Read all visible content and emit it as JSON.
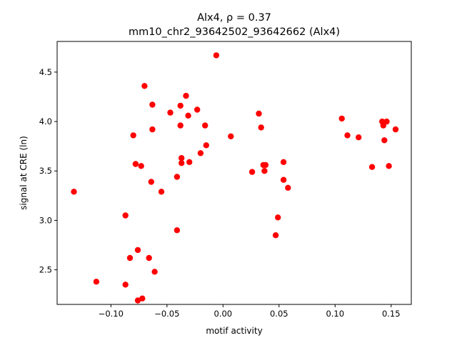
{
  "chart_data": {
    "type": "scatter",
    "title_line1": "Alx4, ρ = 0.37",
    "title_line2": "mm10_chr2_93642502_93642662 (Alx4)",
    "xlabel": "motif activity",
    "ylabel": "signal at CRE (ln)",
    "xlim": [
      -0.148,
      0.168
    ],
    "ylim": [
      2.15,
      4.81
    ],
    "x_ticks": [
      -0.1,
      -0.05,
      0.0,
      0.05,
      0.1,
      0.15
    ],
    "x_tick_labels": [
      "−0.10",
      "−0.05",
      "0.00",
      "0.05",
      "0.10",
      "0.15"
    ],
    "y_ticks": [
      2.5,
      3.0,
      3.5,
      4.0,
      4.5
    ],
    "y_tick_labels": [
      "2.5",
      "3.0",
      "3.5",
      "4.0",
      "4.5"
    ],
    "grid": false,
    "marker_color": "#ff0000",
    "points": [
      {
        "x": -0.133,
        "y": 3.29
      },
      {
        "x": -0.113,
        "y": 2.38
      },
      {
        "x": -0.087,
        "y": 3.05
      },
      {
        "x": -0.087,
        "y": 2.35
      },
      {
        "x": -0.083,
        "y": 2.62
      },
      {
        "x": -0.08,
        "y": 3.86
      },
      {
        "x": -0.078,
        "y": 3.57
      },
      {
        "x": -0.076,
        "y": 2.7
      },
      {
        "x": -0.076,
        "y": 2.19
      },
      {
        "x": -0.073,
        "y": 3.55
      },
      {
        "x": -0.072,
        "y": 2.21
      },
      {
        "x": -0.07,
        "y": 4.36
      },
      {
        "x": -0.066,
        "y": 2.62
      },
      {
        "x": -0.064,
        "y": 3.39
      },
      {
        "x": -0.063,
        "y": 4.17
      },
      {
        "x": -0.063,
        "y": 3.92
      },
      {
        "x": -0.061,
        "y": 2.48
      },
      {
        "x": -0.055,
        "y": 3.29
      },
      {
        "x": -0.047,
        "y": 4.09
      },
      {
        "x": -0.041,
        "y": 3.44
      },
      {
        "x": -0.041,
        "y": 2.9
      },
      {
        "x": -0.038,
        "y": 4.16
      },
      {
        "x": -0.038,
        "y": 3.96
      },
      {
        "x": -0.037,
        "y": 3.63
      },
      {
        "x": -0.037,
        "y": 3.58
      },
      {
        "x": -0.033,
        "y": 4.26
      },
      {
        "x": -0.031,
        "y": 4.06
      },
      {
        "x": -0.03,
        "y": 3.59
      },
      {
        "x": -0.023,
        "y": 4.12
      },
      {
        "x": -0.02,
        "y": 3.68
      },
      {
        "x": -0.016,
        "y": 3.96
      },
      {
        "x": -0.015,
        "y": 3.76
      },
      {
        "x": -0.006,
        "y": 4.67
      },
      {
        "x": 0.007,
        "y": 3.85
      },
      {
        "x": 0.026,
        "y": 3.49
      },
      {
        "x": 0.032,
        "y": 4.08
      },
      {
        "x": 0.034,
        "y": 3.94
      },
      {
        "x": 0.036,
        "y": 3.56
      },
      {
        "x": 0.037,
        "y": 3.5
      },
      {
        "x": 0.038,
        "y": 3.56
      },
      {
        "x": 0.047,
        "y": 2.85
      },
      {
        "x": 0.049,
        "y": 3.03
      },
      {
        "x": 0.054,
        "y": 3.41
      },
      {
        "x": 0.054,
        "y": 3.59
      },
      {
        "x": 0.058,
        "y": 3.33
      },
      {
        "x": 0.106,
        "y": 4.03
      },
      {
        "x": 0.111,
        "y": 3.86
      },
      {
        "x": 0.121,
        "y": 3.84
      },
      {
        "x": 0.133,
        "y": 3.54
      },
      {
        "x": 0.142,
        "y": 4.0
      },
      {
        "x": 0.143,
        "y": 3.96
      },
      {
        "x": 0.144,
        "y": 3.81
      },
      {
        "x": 0.146,
        "y": 4.0
      },
      {
        "x": 0.148,
        "y": 3.55
      },
      {
        "x": 0.154,
        "y": 3.92
      }
    ]
  }
}
